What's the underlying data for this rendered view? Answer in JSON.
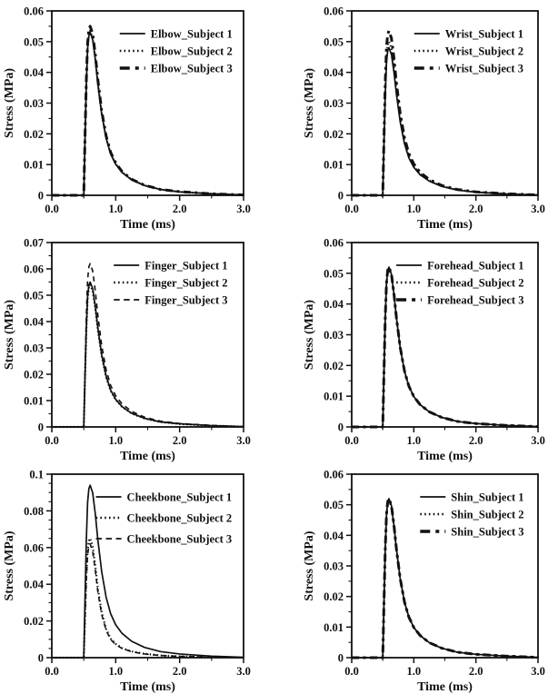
{
  "page": {
    "background": "#ffffff",
    "line_color": "#111111"
  },
  "chart_data": [
    {
      "id": "elbow",
      "type": "line",
      "title": "",
      "xlabel": "Time (ms)",
      "ylabel": "Stress (MPa)",
      "xlim": [
        0.0,
        3.0
      ],
      "ylim": [
        0,
        0.06
      ],
      "grid": false,
      "legend_position": "top-right",
      "x_ticks": {
        "values": [
          0,
          1,
          2,
          3
        ],
        "labels": [
          "0.0",
          "1.0",
          "2.0",
          "3.0"
        ],
        "minor_step": 0.5
      },
      "y_ticks": {
        "values": [
          0,
          0.01,
          0.02,
          0.03,
          0.04,
          0.05,
          0.06
        ],
        "labels": [
          "0",
          "0.01",
          "0.02",
          "0.03",
          "0.04",
          "0.05",
          "0.06"
        ],
        "minor_step": 0.005
      },
      "x": [
        0,
        0.5,
        0.52,
        0.54,
        0.56,
        0.58,
        0.6,
        0.64,
        0.68,
        0.72,
        0.78,
        0.85,
        0.92,
        1,
        1.1,
        1.25,
        1.45,
        1.7,
        2,
        2.5,
        3
      ],
      "series": [
        {
          "name": "Elbow_Subject 1",
          "line_style": "solid",
          "values": [
            0,
            0,
            0.0186,
            0.036,
            0.0477,
            0.0519,
            0.053,
            0.0506,
            0.0443,
            0.0363,
            0.0265,
            0.0186,
            0.0135,
            0.0101,
            0.0074,
            0.005,
            0.0032,
            0.0019,
            0.0011,
            0.0005,
            0.0001
          ]
        },
        {
          "name": "Elbow_Subject 2",
          "line_style": "dotted",
          "values": [
            0,
            0,
            0.0187,
            0.0364,
            0.0482,
            0.0524,
            0.0535,
            0.0511,
            0.0447,
            0.0366,
            0.0268,
            0.0187,
            0.0136,
            0.0102,
            0.0075,
            0.0051,
            0.0032,
            0.0019,
            0.0011,
            0.0005,
            0.0001
          ]
        },
        {
          "name": "Elbow_Subject 3",
          "line_style": "dashed-bold",
          "values": [
            0,
            0,
            0.0193,
            0.0374,
            0.0495,
            0.0539,
            0.055,
            0.0525,
            0.0459,
            0.0377,
            0.0275,
            0.0193,
            0.014,
            0.0105,
            0.0077,
            0.0052,
            0.0033,
            0.0019,
            0.0012,
            0.0005,
            0.0001
          ]
        }
      ]
    },
    {
      "id": "wrist",
      "type": "line",
      "title": "",
      "xlabel": "Time (ms)",
      "ylabel": "Stress (MPa)",
      "xlim": [
        0.0,
        3.0
      ],
      "ylim": [
        0,
        0.06
      ],
      "grid": false,
      "legend_position": "top-right",
      "x_ticks": {
        "values": [
          0,
          1,
          2,
          3
        ],
        "labels": [
          "0.0",
          "1.0",
          "2.0",
          "3.0"
        ],
        "minor_step": 0.5
      },
      "y_ticks": {
        "values": [
          0,
          0.01,
          0.02,
          0.03,
          0.04,
          0.05,
          0.06
        ],
        "labels": [
          "0",
          "0.01",
          "0.02",
          "0.03",
          "0.04",
          "0.05",
          "0.06"
        ],
        "minor_step": 0.005
      },
      "x": [
        0,
        0.5,
        0.52,
        0.54,
        0.56,
        0.58,
        0.6,
        0.64,
        0.68,
        0.72,
        0.78,
        0.85,
        0.92,
        1,
        1.1,
        1.25,
        1.45,
        1.7,
        2,
        2.5,
        3
      ],
      "series": [
        {
          "name": "Wrist_Subject 1",
          "line_style": "solid",
          "values": [
            0,
            0,
            0.0168,
            0.0326,
            0.0432,
            0.047,
            0.048,
            0.0458,
            0.0401,
            0.0329,
            0.024,
            0.0168,
            0.0122,
            0.0091,
            0.0067,
            0.0046,
            0.0029,
            0.0017,
            0.001,
            0.0004,
            0.0001
          ]
        },
        {
          "name": "Wrist_Subject 2",
          "line_style": "dotted",
          "values": [
            0,
            0,
            0.0175,
            0.034,
            0.045,
            0.049,
            0.05,
            0.0478,
            0.0418,
            0.0343,
            0.025,
            0.0175,
            0.0128,
            0.0095,
            0.007,
            0.0048,
            0.003,
            0.0018,
            0.0011,
            0.0005,
            0.0001
          ]
        },
        {
          "name": "Wrist_Subject 3",
          "line_style": "dashed-bold",
          "values": [
            0,
            0,
            0.0187,
            0.0364,
            0.0482,
            0.0524,
            0.0535,
            0.0511,
            0.0447,
            0.0366,
            0.0268,
            0.0187,
            0.0136,
            0.0102,
            0.0075,
            0.0051,
            0.0032,
            0.0019,
            0.0011,
            0.0005,
            0.0001
          ]
        }
      ]
    },
    {
      "id": "finger",
      "type": "line",
      "title": "",
      "xlabel": "Time (ms)",
      "ylabel": "Stress (MPa)",
      "xlim": [
        0.0,
        3.0
      ],
      "ylim": [
        0,
        0.07
      ],
      "grid": false,
      "legend_position": "top-right",
      "x_ticks": {
        "values": [
          0,
          1,
          2,
          3
        ],
        "labels": [
          "0.0",
          "1.0",
          "2.0",
          "3.0"
        ],
        "minor_step": 0.5
      },
      "y_ticks": {
        "values": [
          0,
          0.01,
          0.02,
          0.03,
          0.04,
          0.05,
          0.06,
          0.07
        ],
        "labels": [
          "0",
          "0.01",
          "0.02",
          "0.03",
          "0.04",
          "0.05",
          "0.06",
          "0.07"
        ],
        "minor_step": 0.005
      },
      "x": [
        0,
        0.5,
        0.52,
        0.54,
        0.56,
        0.58,
        0.6,
        0.64,
        0.68,
        0.72,
        0.78,
        0.85,
        0.92,
        1,
        1.1,
        1.25,
        1.45,
        1.7,
        2,
        2.5,
        3
      ],
      "series": [
        {
          "name": "Finger_Subject 1",
          "line_style": "solid",
          "values": [
            0,
            0,
            0.0193,
            0.0374,
            0.0495,
            0.0539,
            0.055,
            0.0525,
            0.0459,
            0.0377,
            0.0275,
            0.0193,
            0.014,
            0.0105,
            0.0077,
            0.0052,
            0.0033,
            0.0019,
            0.0012,
            0.0005,
            0.0001
          ]
        },
        {
          "name": "Finger_Subject 2",
          "line_style": "dotted",
          "values": [
            0,
            0,
            0.0189,
            0.0367,
            0.0486,
            0.0529,
            0.054,
            0.0516,
            0.0451,
            0.037,
            0.027,
            0.0189,
            0.0138,
            0.0103,
            0.0076,
            0.0051,
            0.0032,
            0.0019,
            0.0011,
            0.0005,
            0.0001
          ]
        },
        {
          "name": "Finger_Subject 3",
          "line_style": "dashed",
          "values": [
            0,
            0,
            0.0217,
            0.0422,
            0.0558,
            0.0608,
            0.062,
            0.0592,
            0.0518,
            0.0425,
            0.031,
            0.0217,
            0.0158,
            0.0118,
            0.0087,
            0.0059,
            0.0037,
            0.0022,
            0.0013,
            0.0006,
            0.0001
          ]
        }
      ]
    },
    {
      "id": "forehead",
      "type": "line",
      "title": "",
      "xlabel": "Time (ms)",
      "ylabel": "Stress (MPa)",
      "xlim": [
        0.0,
        3.0
      ],
      "ylim": [
        0,
        0.06
      ],
      "grid": false,
      "legend_position": "top-right",
      "x_ticks": {
        "values": [
          0,
          1,
          2,
          3
        ],
        "labels": [
          "0.0",
          "1.0",
          "2.0",
          "3.0"
        ],
        "minor_step": 0.5
      },
      "y_ticks": {
        "values": [
          0,
          0.01,
          0.02,
          0.03,
          0.04,
          0.05,
          0.06
        ],
        "labels": [
          "0",
          "0.01",
          "0.02",
          "0.03",
          "0.04",
          "0.05",
          "0.06"
        ],
        "minor_step": 0.005
      },
      "x": [
        0,
        0.5,
        0.52,
        0.54,
        0.56,
        0.58,
        0.6,
        0.64,
        0.68,
        0.72,
        0.78,
        0.85,
        0.92,
        1,
        1.1,
        1.25,
        1.45,
        1.7,
        2,
        2.5,
        3
      ],
      "series": [
        {
          "name": "Forehead_Subject 1",
          "line_style": "solid",
          "values": [
            0,
            0,
            0.0182,
            0.0354,
            0.0468,
            0.051,
            0.052,
            0.0497,
            0.0434,
            0.0356,
            0.026,
            0.0182,
            0.0133,
            0.0099,
            0.0073,
            0.0049,
            0.0031,
            0.0018,
            0.0011,
            0.0005,
            0.0001
          ]
        },
        {
          "name": "Forehead_Subject 2",
          "line_style": "dotted",
          "values": [
            0,
            0,
            0.018,
            0.035,
            0.0464,
            0.0505,
            0.0515,
            0.0492,
            0.043,
            0.0353,
            0.0258,
            0.018,
            0.0131,
            0.0098,
            0.0072,
            0.0049,
            0.0031,
            0.0018,
            0.0011,
            0.0005,
            0.0001
          ]
        },
        {
          "name": "Forehead_Subject 3",
          "line_style": "dashed-bold",
          "values": [
            0,
            0,
            0.0182,
            0.0354,
            0.0468,
            0.051,
            0.052,
            0.0497,
            0.0434,
            0.0356,
            0.026,
            0.0182,
            0.0133,
            0.0099,
            0.0073,
            0.0049,
            0.0031,
            0.0018,
            0.0011,
            0.0005,
            0.0001
          ]
        }
      ]
    },
    {
      "id": "cheekbone",
      "type": "line",
      "title": "",
      "xlabel": "Time (ms)",
      "ylabel": "Stress (MPa)",
      "xlim": [
        0.0,
        3.0
      ],
      "ylim": [
        0,
        0.1
      ],
      "grid": false,
      "legend_position": "top-right",
      "x_ticks": {
        "values": [
          0,
          1,
          2,
          3
        ],
        "labels": [
          "0.0",
          "1.0",
          "2.0",
          "3.0"
        ],
        "minor_step": 0.5
      },
      "y_ticks": {
        "values": [
          0,
          0.02,
          0.04,
          0.06,
          0.08,
          0.1
        ],
        "labels": [
          "0",
          "0.02",
          "0.04",
          "0.06",
          "0.08",
          "0.1"
        ],
        "minor_step": 0.005
      },
      "x": [
        0,
        0.5,
        0.52,
        0.54,
        0.56,
        0.58,
        0.6,
        0.64,
        0.68,
        0.72,
        0.78,
        0.85,
        0.92,
        1,
        1.1,
        1.25,
        1.45,
        1.7,
        2,
        2.5,
        3
      ],
      "series": [
        {
          "name": "Cheekbone_Subject 1",
          "line_style": "solid",
          "values": [
            0,
            0,
            0.0329,
            0.0639,
            0.0846,
            0.0921,
            0.094,
            0.0898,
            0.0785,
            0.0644,
            0.047,
            0.0329,
            0.024,
            0.0179,
            0.0132,
            0.0089,
            0.0056,
            0.0033,
            0.002,
            0.0008,
            0.0002
          ]
        },
        {
          "name": "Cheekbone_Subject 2",
          "line_style": "dotted",
          "values": [
            0,
            0,
            0.0228,
            0.0442,
            0.0585,
            0.0637,
            0.065,
            0.0605,
            0.0501,
            0.0377,
            0.0247,
            0.0156,
            0.0104,
            0.0075,
            0.0052,
            0.0034,
            0.0021,
            0.0012,
            0.0007,
            0.0003,
            0.0001
          ]
        },
        {
          "name": "Cheekbone_Subject 3",
          "line_style": "dashed",
          "values": [
            0,
            0,
            0.0217,
            0.0422,
            0.0558,
            0.0608,
            0.062,
            0.0577,
            0.0477,
            0.036,
            0.0236,
            0.0149,
            0.0099,
            0.0071,
            0.005,
            0.0032,
            0.002,
            0.0012,
            0.0007,
            0.0003,
            0.0001
          ]
        }
      ]
    },
    {
      "id": "shin",
      "type": "line",
      "title": "",
      "xlabel": "Time (ms)",
      "ylabel": "Stress (MPa)",
      "xlim": [
        0.0,
        3.0
      ],
      "ylim": [
        0,
        0.06
      ],
      "grid": false,
      "legend_position": "top-right",
      "x_ticks": {
        "values": [
          0,
          1,
          2,
          3
        ],
        "labels": [
          "0.0",
          "1.0",
          "2.0",
          "3.0"
        ],
        "minor_step": 0.5
      },
      "y_ticks": {
        "values": [
          0,
          0.01,
          0.02,
          0.03,
          0.04,
          0.05,
          0.06
        ],
        "labels": [
          "0",
          "0.01",
          "0.02",
          "0.03",
          "0.04",
          "0.05",
          "0.06"
        ],
        "minor_step": 0.005
      },
      "x": [
        0,
        0.5,
        0.52,
        0.54,
        0.56,
        0.58,
        0.6,
        0.64,
        0.68,
        0.72,
        0.78,
        0.85,
        0.92,
        1,
        1.1,
        1.25,
        1.45,
        1.7,
        2,
        2.5,
        3
      ],
      "series": [
        {
          "name": "Shin_Subject 1",
          "line_style": "solid",
          "values": [
            0,
            0,
            0.0182,
            0.0354,
            0.0468,
            0.051,
            0.052,
            0.0497,
            0.0434,
            0.0356,
            0.026,
            0.0182,
            0.0133,
            0.0099,
            0.0073,
            0.0049,
            0.0031,
            0.0018,
            0.0011,
            0.0005,
            0.0001
          ]
        },
        {
          "name": "Shin_Subject 2",
          "line_style": "dotted",
          "values": [
            0,
            0,
            0.018,
            0.035,
            0.0464,
            0.0505,
            0.0515,
            0.0492,
            0.043,
            0.0353,
            0.0258,
            0.018,
            0.0131,
            0.0098,
            0.0072,
            0.0049,
            0.0031,
            0.0018,
            0.0011,
            0.0005,
            0.0001
          ]
        },
        {
          "name": "Shin_Subject 3",
          "line_style": "dashed-bold",
          "values": [
            0,
            0,
            0.0182,
            0.0354,
            0.0468,
            0.051,
            0.052,
            0.0497,
            0.0434,
            0.0356,
            0.026,
            0.0182,
            0.0133,
            0.0099,
            0.0073,
            0.0049,
            0.0031,
            0.0018,
            0.0011,
            0.0005,
            0.0001
          ]
        }
      ]
    }
  ]
}
